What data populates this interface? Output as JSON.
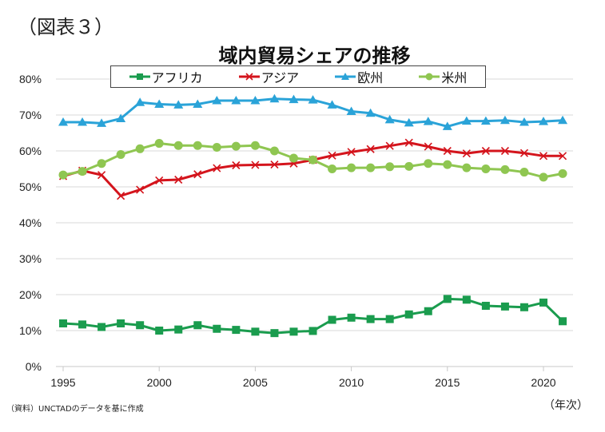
{
  "figure_label": "（図表３）",
  "source_note": "（資料）UNCTADのデータを基に作成",
  "x_unit_label": "（年次）",
  "colors": {
    "africa": "#1a9c4e",
    "asia": "#d4141c",
    "europe": "#2aa3d8",
    "americas": "#8fc651"
  },
  "chart_data": {
    "type": "line",
    "title": "域内貿易シェアの推移",
    "xlabel": "（年次）",
    "ylabel": "",
    "x": [
      1995,
      1996,
      1997,
      1998,
      1999,
      2000,
      2001,
      2002,
      2003,
      2004,
      2005,
      2006,
      2007,
      2008,
      2009,
      2010,
      2011,
      2012,
      2013,
      2014,
      2015,
      2016,
      2017,
      2018,
      2019,
      2020,
      2021
    ],
    "xticks": [
      1995,
      2000,
      2005,
      2010,
      2015,
      2020
    ],
    "xtick_labels": [
      "1995",
      "2000",
      "2005",
      "2010",
      "2015",
      "2020"
    ],
    "yticks": [
      0,
      10,
      20,
      30,
      40,
      50,
      60,
      70,
      80
    ],
    "ytick_labels": [
      "0%",
      "10%",
      "20%",
      "30%",
      "40%",
      "50%",
      "60%",
      "70%",
      "80%"
    ],
    "ylim": [
      0,
      80
    ],
    "grid": "horizontal",
    "legend_position": "top-center",
    "series": [
      {
        "key": "africa",
        "name": "アフリカ",
        "marker": "square",
        "values": [
          12.0,
          11.7,
          11.0,
          12.0,
          11.5,
          10.0,
          10.3,
          11.5,
          10.5,
          10.2,
          9.7,
          9.3,
          9.7,
          9.9,
          13.0,
          13.6,
          13.2,
          13.2,
          14.5,
          15.4,
          18.8,
          18.6,
          16.9,
          16.7,
          16.5,
          17.8,
          12.6
        ]
      },
      {
        "key": "asia",
        "name": "アジア",
        "marker": "x",
        "values": [
          53.0,
          54.5,
          53.3,
          47.5,
          49.2,
          51.8,
          52.0,
          53.5,
          55.2,
          56.0,
          56.1,
          56.2,
          56.5,
          57.5,
          58.7,
          59.7,
          60.5,
          61.4,
          62.3,
          61.2,
          60.0,
          59.3,
          60.0,
          60.0,
          59.4,
          58.6,
          58.6
        ]
      },
      {
        "key": "europe",
        "name": "欧州",
        "marker": "triangle",
        "values": [
          68.0,
          68.0,
          67.7,
          69.0,
          73.5,
          73.0,
          72.8,
          73.0,
          74.0,
          74.0,
          74.0,
          74.5,
          74.3,
          74.2,
          72.8,
          71.0,
          70.5,
          68.7,
          67.8,
          68.2,
          66.8,
          68.3,
          68.3,
          68.5,
          68.0,
          68.2,
          68.5
        ]
      },
      {
        "key": "americas",
        "name": "米州",
        "marker": "circle",
        "values": [
          53.3,
          54.3,
          56.5,
          59.0,
          60.6,
          62.1,
          61.5,
          61.5,
          61.0,
          61.3,
          61.5,
          60.0,
          58.0,
          57.5,
          55.0,
          55.3,
          55.3,
          55.6,
          55.7,
          56.5,
          56.2,
          55.3,
          55.0,
          54.8,
          54.1,
          52.7,
          53.7
        ]
      }
    ]
  }
}
